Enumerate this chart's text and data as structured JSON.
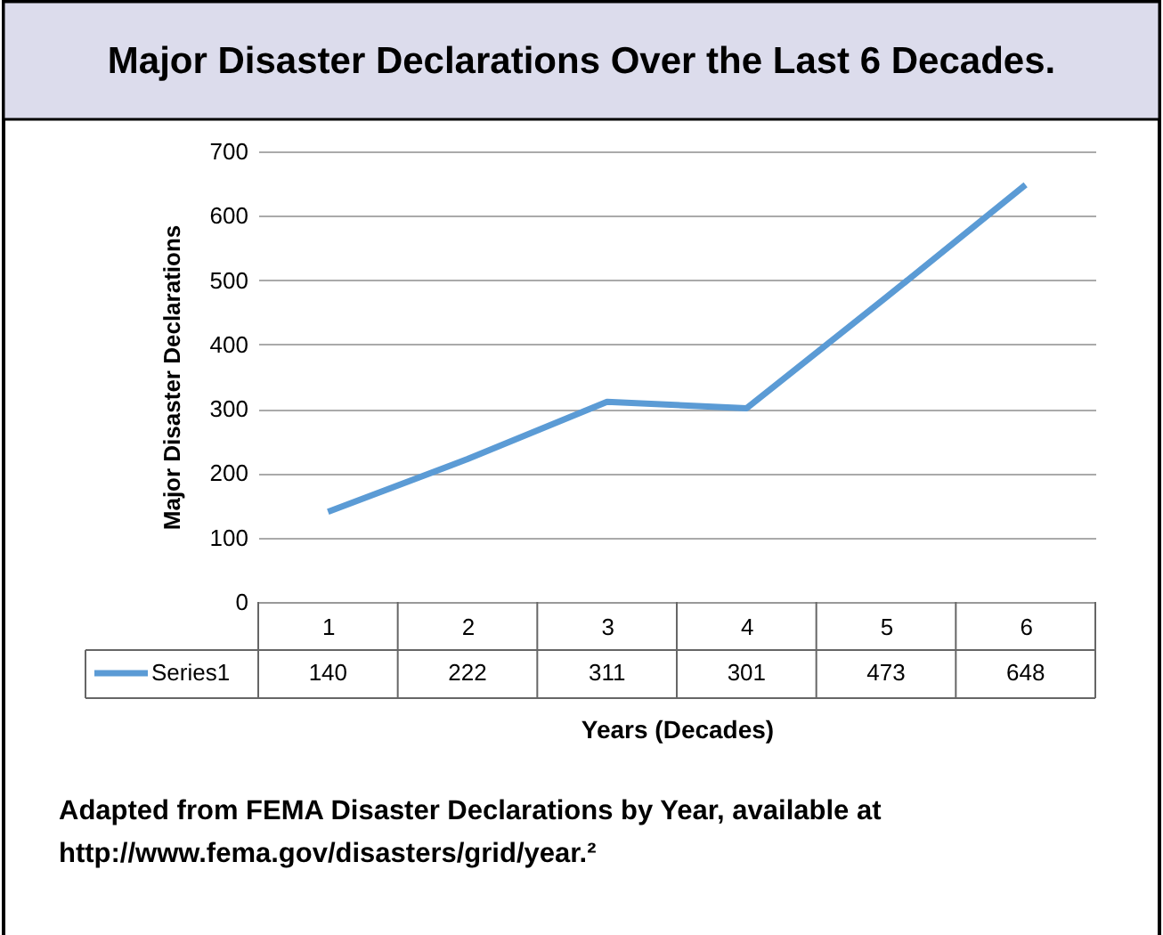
{
  "chart_data": {
    "type": "line",
    "title": "Major Disaster Declarations Over the Last 6 Decades.",
    "xlabel": "Years (Decades)",
    "ylabel": "Major Disaster Declarations",
    "categories": [
      "1",
      "2",
      "3",
      "4",
      "5",
      "6"
    ],
    "series": [
      {
        "name": "Series1",
        "color": "#5b9bd5",
        "values": [
          140,
          222,
          311,
          301,
          473,
          648
        ]
      }
    ],
    "ylim": [
      0,
      700
    ],
    "yticks": [
      0,
      100,
      200,
      300,
      400,
      500,
      600,
      700
    ],
    "grid": "y",
    "legend": "bottom",
    "data_labels": true,
    "marker": "none",
    "line_style": "solid",
    "annotations": [
      "Adapted from FEMA Disaster Declarations by Year, available at http://www.fema.gov/disasters/grid/year.²"
    ]
  }
}
